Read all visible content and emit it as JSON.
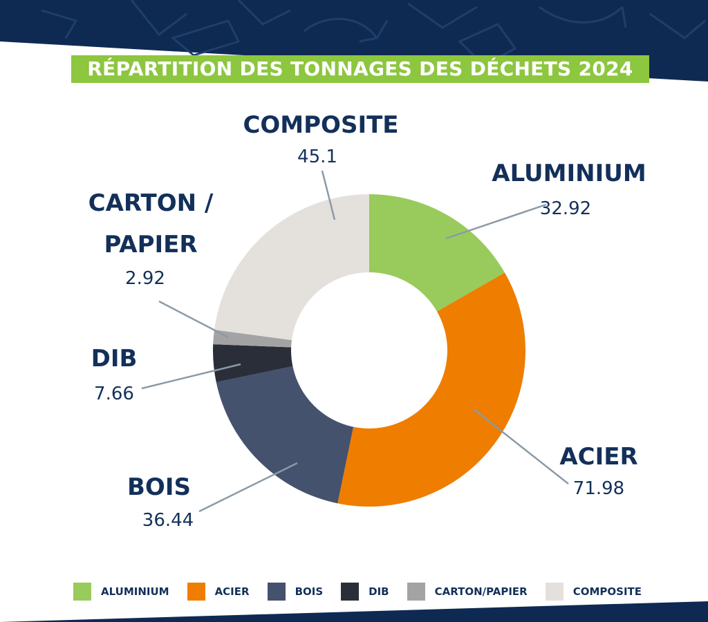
{
  "header": {
    "title": "RÉPARTITION DES TONNAGES DES DÉCHETS 2024"
  },
  "colors": {
    "navy": "#0f2a52",
    "title_band": "#8dc63f",
    "label_text": "#13305a",
    "leader_line": "#8a9aa6"
  },
  "chart_data": {
    "type": "pie",
    "donut": true,
    "title": "RÉPARTITION DES TONNAGES DES DÉCHETS 2024",
    "legend_placement": "bottom",
    "slices": [
      {
        "label": "ALUMINIUM",
        "value": 32.92,
        "value_text": "32.92",
        "color": "#98cb5b"
      },
      {
        "label": "ACIER",
        "value": 71.98,
        "value_text": "71.98",
        "color": "#ee7d00"
      },
      {
        "label": "BOIS",
        "value": 36.44,
        "value_text": "36.44",
        "color": "#44526e"
      },
      {
        "label": "DIB",
        "value": 7.66,
        "value_text": "7.66",
        "color": "#2a2e38"
      },
      {
        "label": "CARTON /\nPAPIER",
        "value": 2.92,
        "value_text": "2.92",
        "color": "#a3a3a3"
      },
      {
        "label": "COMPOSITE",
        "value": 45.1,
        "value_text": "45.1",
        "color": "#e4e0dc"
      }
    ]
  },
  "legend": {
    "items": [
      {
        "label": "ALUMINIUM",
        "color": "#98cb5b"
      },
      {
        "label": "ACIER",
        "color": "#ee7d00"
      },
      {
        "label": "BOIS",
        "color": "#44526e"
      },
      {
        "label": "DIB",
        "color": "#2a2e38"
      },
      {
        "label": "CARTON/PAPIER",
        "color": "#a3a3a3"
      },
      {
        "label": "COMPOSITE",
        "color": "#e4e0dc"
      }
    ]
  }
}
